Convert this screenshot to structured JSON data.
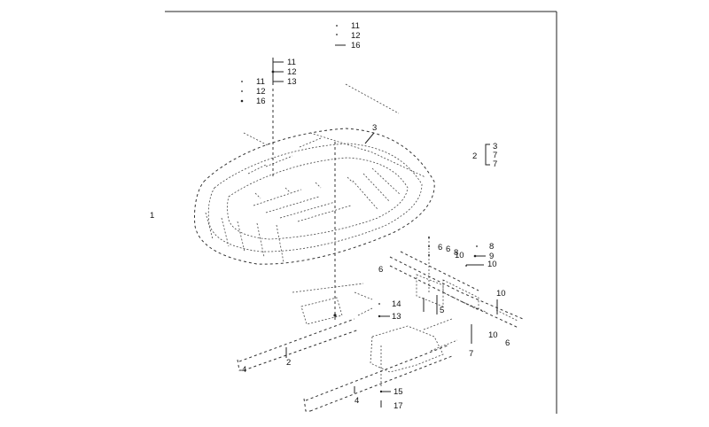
{
  "callouts": {
    "top_list": [
      "11",
      "12",
      "16"
    ],
    "stack_a": [
      "11",
      "12",
      "13"
    ],
    "stack_b": [
      "11",
      "12",
      "16"
    ],
    "item_1": "1",
    "item_3": "3",
    "bracket_head": "2",
    "bracket_items": [
      "3",
      "7",
      "7"
    ],
    "right_6_a": "6",
    "right_6_b": "6",
    "right_8_a": "8",
    "right_8_b": "8",
    "right_10_small": "10",
    "right_8_c": "8",
    "right_9": "9",
    "right_10_a": "10",
    "left_6": "6",
    "right_10_b": "10",
    "mid_5": "5",
    "label_14": "14",
    "label_13": "13",
    "right_10_c": "10",
    "right_6_c": "6",
    "right_7": "7",
    "label_2": "2",
    "label_4": "4",
    "label_15": "15",
    "label_17": "17"
  }
}
